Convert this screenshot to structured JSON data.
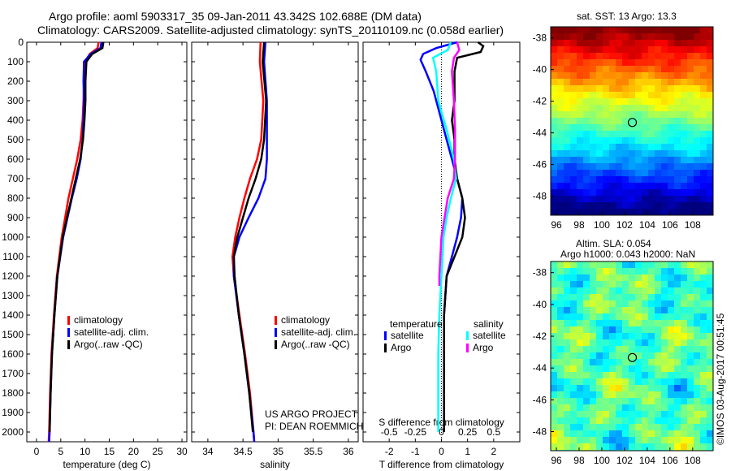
{
  "title_line1": "Argo profile: aoml 5903317_35 09-Jan-2011 43.342S 102.688E (DM data)",
  "title_line2": "Climatology: CARS2009. Satellite-adjusted climatology: synTS_20110109.nc (0.058d earlier)",
  "project_line1": "US ARGO PROJECT",
  "project_line2": "PI: DEAN ROEMMICH",
  "sst_title": "sat. SST: 13 Argo: 13.3",
  "sla_title1": "Altim. SLA: 0.054",
  "sla_title2": "Argo h1000: 0.043 h2000: NaN",
  "credit": "©IMOS 03-Aug-2017 00:51:45",
  "colors": {
    "climatology": "#ff0000",
    "satellite": "#0000ff",
    "argo": "#000000",
    "sal_satellite": "#00ffff",
    "sal_argo": "#ff00ff"
  },
  "chart_data": [
    {
      "type": "line",
      "xlabel": "temperature (deg C)",
      "ylim": [
        0,
        2050
      ],
      "xlim": [
        -2,
        31
      ],
      "xticks": [
        0,
        5,
        10,
        15,
        20,
        25,
        30
      ],
      "yticks": [
        0,
        100,
        200,
        300,
        400,
        500,
        600,
        700,
        800,
        900,
        1000,
        1100,
        1200,
        1300,
        1400,
        1500,
        1600,
        1700,
        1800,
        1900,
        2000
      ],
      "legend": [
        "climatology",
        "satellite-adj. clim.",
        "Argo(..raw -QC)"
      ],
      "series": [
        {
          "name": "climatology",
          "color": "#ff0000",
          "depth": [
            0,
            30,
            60,
            100,
            200,
            300,
            400,
            500,
            600,
            700,
            800,
            900,
            1000,
            1200,
            1400,
            1600,
            1800,
            2000,
            2050
          ],
          "values": [
            12.8,
            12.6,
            11,
            10,
            9.8,
            9.7,
            9.5,
            9.1,
            8.4,
            7.5,
            6.6,
            5.9,
            5.2,
            4.2,
            3.6,
            3.1,
            2.8,
            2.6,
            2.5
          ]
        },
        {
          "name": "satellite-adj. clim.",
          "color": "#0000ff",
          "depth": [
            0,
            30,
            60,
            100,
            200,
            300,
            400,
            500,
            600,
            700,
            800,
            900,
            1000,
            1200,
            1400,
            1600,
            1800,
            2000,
            2050
          ],
          "values": [
            13.4,
            13.2,
            11.2,
            9.8,
            9.7,
            9.8,
            9.7,
            9.5,
            9.1,
            8.3,
            7.3,
            6.4,
            5.5,
            4.3,
            3.7,
            3.2,
            2.9,
            2.7,
            2.6
          ]
        },
        {
          "name": "Argo(..raw -QC)",
          "color": "#000000",
          "depth": [
            0,
            30,
            60,
            100,
            200,
            300,
            400,
            500,
            600,
            700,
            800,
            900,
            1000,
            1200,
            1400,
            1600,
            1800,
            2000
          ],
          "values": [
            13.8,
            13.6,
            11.5,
            10.3,
            10.1,
            10.1,
            9.9,
            9.6,
            9.0,
            8.1,
            7.2,
            6.3,
            5.4,
            4.3,
            3.7,
            3.2,
            2.9,
            2.7
          ]
        }
      ]
    },
    {
      "type": "line",
      "xlabel": "salinity",
      "ylim": [
        0,
        2050
      ],
      "xlim": [
        33.77,
        36.14
      ],
      "xticks": [
        34,
        34.5,
        35,
        35.5,
        36
      ],
      "legend": [
        "climatology",
        "satellite-adj. clim.",
        "Argo(..raw -QC)"
      ],
      "series": [
        {
          "name": "climatology",
          "color": "#ff0000",
          "depth": [
            0,
            100,
            300,
            500,
            600,
            700,
            800,
            900,
            1000,
            1100,
            1200,
            1400,
            1600,
            1800,
            2000,
            2050
          ],
          "values": [
            34.75,
            34.74,
            34.79,
            34.76,
            34.7,
            34.6,
            34.52,
            34.45,
            34.39,
            34.35,
            34.37,
            34.45,
            34.53,
            34.6,
            34.65,
            34.66
          ]
        },
        {
          "name": "satellite-adj. clim.",
          "color": "#0000ff",
          "depth": [
            0,
            100,
            300,
            500,
            600,
            700,
            800,
            900,
            1000,
            1100,
            1200,
            1400,
            1600,
            1800,
            2000,
            2050
          ],
          "values": [
            34.82,
            34.8,
            34.84,
            34.84,
            34.84,
            34.82,
            34.72,
            34.58,
            34.45,
            34.37,
            34.37,
            34.44,
            34.52,
            34.59,
            34.65,
            34.66
          ]
        },
        {
          "name": "Argo(..raw -QC)",
          "color": "#000000",
          "depth": [
            0,
            100,
            300,
            500,
            600,
            700,
            800,
            900,
            1000,
            1100,
            1200,
            1400,
            1600,
            1800,
            2000
          ],
          "values": [
            34.8,
            34.78,
            34.83,
            34.8,
            34.76,
            34.68,
            34.58,
            34.5,
            34.42,
            34.37,
            34.38,
            34.44,
            34.52,
            34.59,
            34.64
          ]
        }
      ]
    },
    {
      "type": "line",
      "xlabel": "T difference from climatology",
      "x2label": "S difference from climatology",
      "ylim": [
        0,
        2050
      ],
      "xlim": [
        -3,
        3
      ],
      "xticks": [
        -2,
        -1,
        0,
        1,
        2
      ],
      "x2lim": [
        -0.75,
        0.75
      ],
      "x2ticks": [
        -0.5,
        -0.25,
        0,
        0.25,
        0.5
      ],
      "x2ticklabels": [
        "-0.5",
        "-0.25",
        "0",
        "0.25",
        "0.5"
      ],
      "legend_temperature_title": "temperature",
      "legend_salinity_title": "salinity",
      "legend_temperature": [
        "satellite",
        "Argo"
      ],
      "legend_salinity": [
        "satellite",
        "Argo"
      ],
      "series": [
        {
          "name": "temperature satellite",
          "axis": "T",
          "color": "#0000ff",
          "depth": [
            0,
            30,
            60,
            90,
            150,
            250,
            350,
            500,
            600,
            700,
            800,
            900,
            1000,
            1100,
            1200,
            1400,
            1600,
            2000
          ],
          "values": [
            0.6,
            -0.2,
            -0.7,
            -0.8,
            -0.6,
            -0.3,
            -0.1,
            0.2,
            0.4,
            0.6,
            0.8,
            0.75,
            0.6,
            0.4,
            0.2,
            0.1,
            0.1,
            0.1
          ]
        },
        {
          "name": "temperature Argo",
          "axis": "T",
          "color": "#000000",
          "depth": [
            0,
            20,
            50,
            80,
            150,
            300,
            400,
            500,
            600,
            700,
            800,
            900,
            1000,
            1100,
            1200,
            1400,
            1600,
            2000
          ],
          "values": [
            1.4,
            1.6,
            1.5,
            0.6,
            0.5,
            0.5,
            0.4,
            0.5,
            0.5,
            0.6,
            0.8,
            0.9,
            0.8,
            0.5,
            0.2,
            0.1,
            0.1,
            0.1
          ]
        },
        {
          "name": "salinity satellite",
          "axis": "S",
          "color": "#00ffff",
          "depth": [
            0,
            40,
            80,
            150,
            300,
            450,
            600,
            700,
            800,
            900,
            1000,
            1200,
            1400,
            1600,
            2000
          ],
          "values": [
            0.09,
            0.06,
            -0.08,
            -0.05,
            -0.03,
            0.05,
            0.12,
            0.14,
            0.09,
            0.05,
            0.02,
            0,
            -0.02,
            -0.03,
            -0.03
          ]
        },
        {
          "name": "salinity Argo",
          "axis": "S",
          "color": "#ff00ff",
          "depth": [
            0,
            40,
            80,
            150,
            300,
            450,
            600,
            700,
            800,
            900,
            1000,
            1200,
            1250
          ],
          "values": [
            0.15,
            0.17,
            0.12,
            0.1,
            0.12,
            0.13,
            0.13,
            0.12,
            0.06,
            0.03,
            0.0,
            -0.02,
            -0.02
          ]
        }
      ]
    },
    {
      "type": "heatmap",
      "title": "sat. SST: 13 Argo: 13.3",
      "lon_range": [
        95.5,
        109.8
      ],
      "lat_range": [
        -49.2,
        -37.3
      ],
      "xticks": [
        96,
        98,
        100,
        102,
        104,
        106,
        108
      ],
      "yticks": [
        -38,
        -40,
        -42,
        -44,
        -46,
        -48
      ],
      "marker": {
        "lon": 102.688,
        "lat": -43.342
      }
    },
    {
      "type": "heatmap",
      "title": "Altim. SLA: 0.054",
      "lon_range": [
        95.5,
        109.8
      ],
      "lat_range": [
        -49.2,
        -37.3
      ],
      "xticks": [
        96,
        98,
        100,
        102,
        104,
        106,
        108
      ],
      "yticks": [
        -38,
        -40,
        -42,
        -44,
        -46,
        -48
      ],
      "marker": {
        "lon": 102.688,
        "lat": -43.342
      }
    }
  ]
}
